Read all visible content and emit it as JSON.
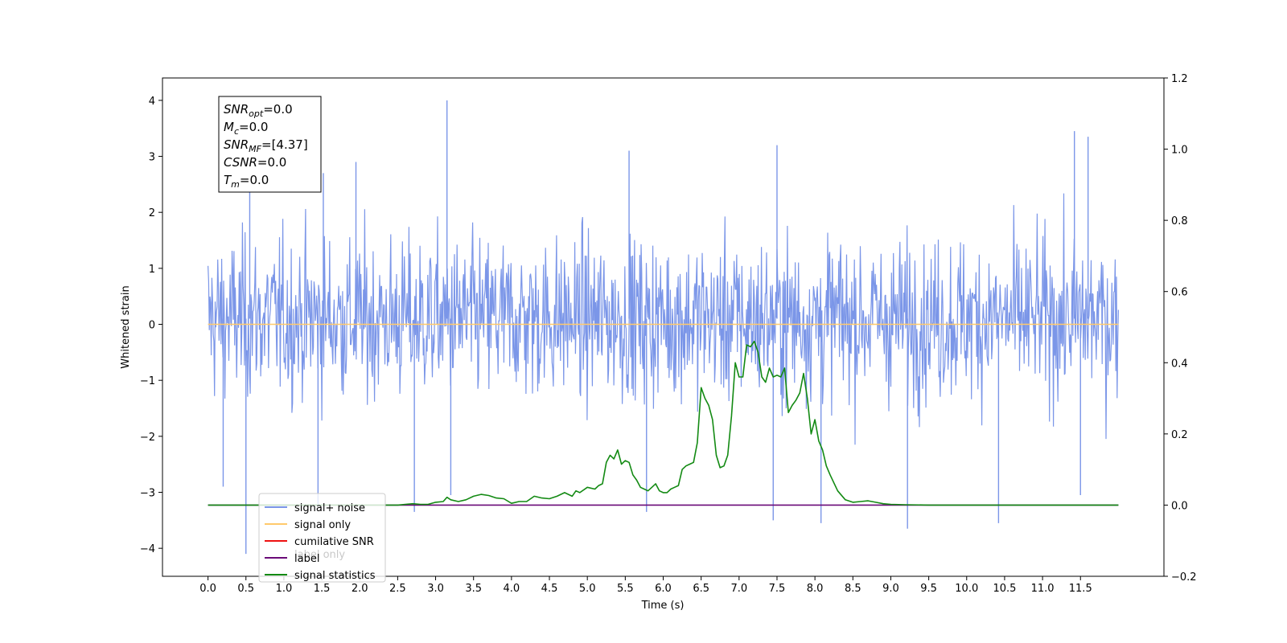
{
  "chart_data": {
    "type": "line",
    "xlabel": "Time (s)",
    "ylabel": "Whitened strain",
    "xlim": [
      -0.6,
      12.6
    ],
    "ylim": [
      -4.5,
      4.4
    ],
    "ylim_right": [
      -0.2,
      1.2
    ],
    "x_ticks": [
      "0.0",
      "0.5",
      "1.0",
      "1.5",
      "2.0",
      "2.5",
      "3.0",
      "3.5",
      "4.0",
      "4.5",
      "5.0",
      "5.5",
      "6.0",
      "6.5",
      "7.0",
      "7.5",
      "8.0",
      "8.5",
      "9.0",
      "9.5",
      "10.0",
      "10.5",
      "11.0",
      "11.5"
    ],
    "y_ticks_left": [
      "4",
      "3",
      "2",
      "1",
      "0",
      "−1",
      "−2",
      "−3",
      "−4"
    ],
    "y_ticks_right": [
      "1.2",
      "1.0",
      "0.8",
      "0.6",
      "0.4",
      "0.2",
      "0.0",
      "−0.2"
    ],
    "legend_position": "lower-left",
    "legend": [
      {
        "label": "signal+ noise",
        "color": "#7b96e8"
      },
      {
        "label": "signal only",
        "color": "#ffc96b"
      },
      {
        "label": "cumilative SNR",
        "color": "#ee1111"
      },
      {
        "label": "label",
        "color": "#6a0a78"
      },
      {
        "label": "signal statistics",
        "color": "#138a13"
      }
    ],
    "ghost_label": "label only",
    "annotation": [
      {
        "base": "SNR",
        "sub": "opt",
        "value": "=0.0"
      },
      {
        "base": "M",
        "sub": "c",
        "value": "=0.0"
      },
      {
        "base": "SNR",
        "sub": "MF",
        "value": "=[4.37]"
      },
      {
        "base": "CSNR",
        "sub": "",
        "value": "=0.0"
      },
      {
        "base": "T",
        "sub": "m",
        "value": "=0.0"
      }
    ],
    "series": [
      {
        "name": "signal+ noise",
        "axis": "left",
        "kind": "noise",
        "x_range": [
          0.0,
          12.0
        ],
        "typical_range": [
          -1.6,
          1.8
        ],
        "max": 4.0,
        "min": -4.1,
        "color": "#7b96e8",
        "spikes": [
          {
            "x": 0.5,
            "y": -4.1
          },
          {
            "x": 0.55,
            "y": 2.9
          },
          {
            "x": 0.2,
            "y": -2.9
          },
          {
            "x": 1.45,
            "y": -3.25
          },
          {
            "x": 1.52,
            "y": 2.7
          },
          {
            "x": 1.95,
            "y": 2.9
          },
          {
            "x": 2.72,
            "y": -3.35
          },
          {
            "x": 3.15,
            "y": 4.0
          },
          {
            "x": 3.2,
            "y": -3.05
          },
          {
            "x": 5.55,
            "y": 3.1
          },
          {
            "x": 5.78,
            "y": -3.35
          },
          {
            "x": 7.45,
            "y": -3.5
          },
          {
            "x": 7.5,
            "y": 3.2
          },
          {
            "x": 8.08,
            "y": -3.55
          },
          {
            "x": 9.22,
            "y": -3.65
          },
          {
            "x": 10.42,
            "y": -3.55
          },
          {
            "x": 11.42,
            "y": 3.45
          },
          {
            "x": 11.6,
            "y": 3.35
          },
          {
            "x": 11.5,
            "y": -3.05
          }
        ]
      },
      {
        "name": "signal only",
        "axis": "left",
        "x": [
          0.0,
          12.0
        ],
        "y": [
          0.0,
          0.0
        ],
        "color": "#ffc96b"
      },
      {
        "name": "label",
        "axis": "right",
        "x": [
          0.0,
          12.0
        ],
        "y": [
          0.0,
          0.0
        ],
        "color": "#6a0a78"
      },
      {
        "name": "signal statistics",
        "axis": "right",
        "color": "#138a13",
        "x": [
          0.0,
          2.0,
          2.5,
          2.6,
          2.7,
          2.8,
          2.9,
          3.0,
          3.1,
          3.15,
          3.2,
          3.3,
          3.4,
          3.5,
          3.6,
          3.7,
          3.8,
          3.9,
          4.0,
          4.1,
          4.2,
          4.3,
          4.4,
          4.5,
          4.6,
          4.7,
          4.8,
          4.85,
          4.9,
          5.0,
          5.1,
          5.15,
          5.2,
          5.25,
          5.3,
          5.35,
          5.4,
          5.45,
          5.5,
          5.55,
          5.6,
          5.65,
          5.7,
          5.75,
          5.8,
          5.85,
          5.9,
          5.95,
          6.0,
          6.05,
          6.1,
          6.15,
          6.2,
          6.25,
          6.3,
          6.35,
          6.4,
          6.45,
          6.5,
          6.55,
          6.6,
          6.65,
          6.7,
          6.75,
          6.8,
          6.85,
          6.9,
          6.95,
          7.0,
          7.05,
          7.1,
          7.15,
          7.2,
          7.25,
          7.3,
          7.35,
          7.4,
          7.45,
          7.5,
          7.55,
          7.6,
          7.65,
          7.7,
          7.75,
          7.8,
          7.85,
          7.9,
          7.95,
          8.0,
          8.05,
          8.1,
          8.15,
          8.2,
          8.3,
          8.4,
          8.5,
          8.6,
          8.7,
          8.8,
          8.9,
          9.0,
          9.2,
          9.5,
          10.0,
          10.5,
          12.0
        ],
        "y": [
          0.0,
          0.0,
          0.0,
          0.002,
          0.004,
          0.002,
          0.002,
          0.008,
          0.01,
          0.022,
          0.015,
          0.01,
          0.015,
          0.025,
          0.03,
          0.027,
          0.02,
          0.018,
          0.005,
          0.01,
          0.01,
          0.025,
          0.02,
          0.018,
          0.025,
          0.035,
          0.025,
          0.04,
          0.035,
          0.05,
          0.045,
          0.055,
          0.06,
          0.12,
          0.14,
          0.13,
          0.155,
          0.115,
          0.125,
          0.12,
          0.085,
          0.07,
          0.05,
          0.045,
          0.04,
          0.05,
          0.06,
          0.04,
          0.035,
          0.035,
          0.045,
          0.05,
          0.055,
          0.1,
          0.11,
          0.115,
          0.12,
          0.175,
          0.33,
          0.3,
          0.28,
          0.24,
          0.14,
          0.105,
          0.11,
          0.14,
          0.25,
          0.4,
          0.36,
          0.36,
          0.45,
          0.445,
          0.46,
          0.43,
          0.36,
          0.345,
          0.385,
          0.36,
          0.365,
          0.36,
          0.385,
          0.26,
          0.28,
          0.295,
          0.315,
          0.37,
          0.3,
          0.2,
          0.24,
          0.18,
          0.155,
          0.11,
          0.085,
          0.04,
          0.015,
          0.008,
          0.01,
          0.012,
          0.008,
          0.004,
          0.002,
          0.001,
          0.0,
          0.0,
          0.0,
          0.0
        ]
      }
    ]
  }
}
